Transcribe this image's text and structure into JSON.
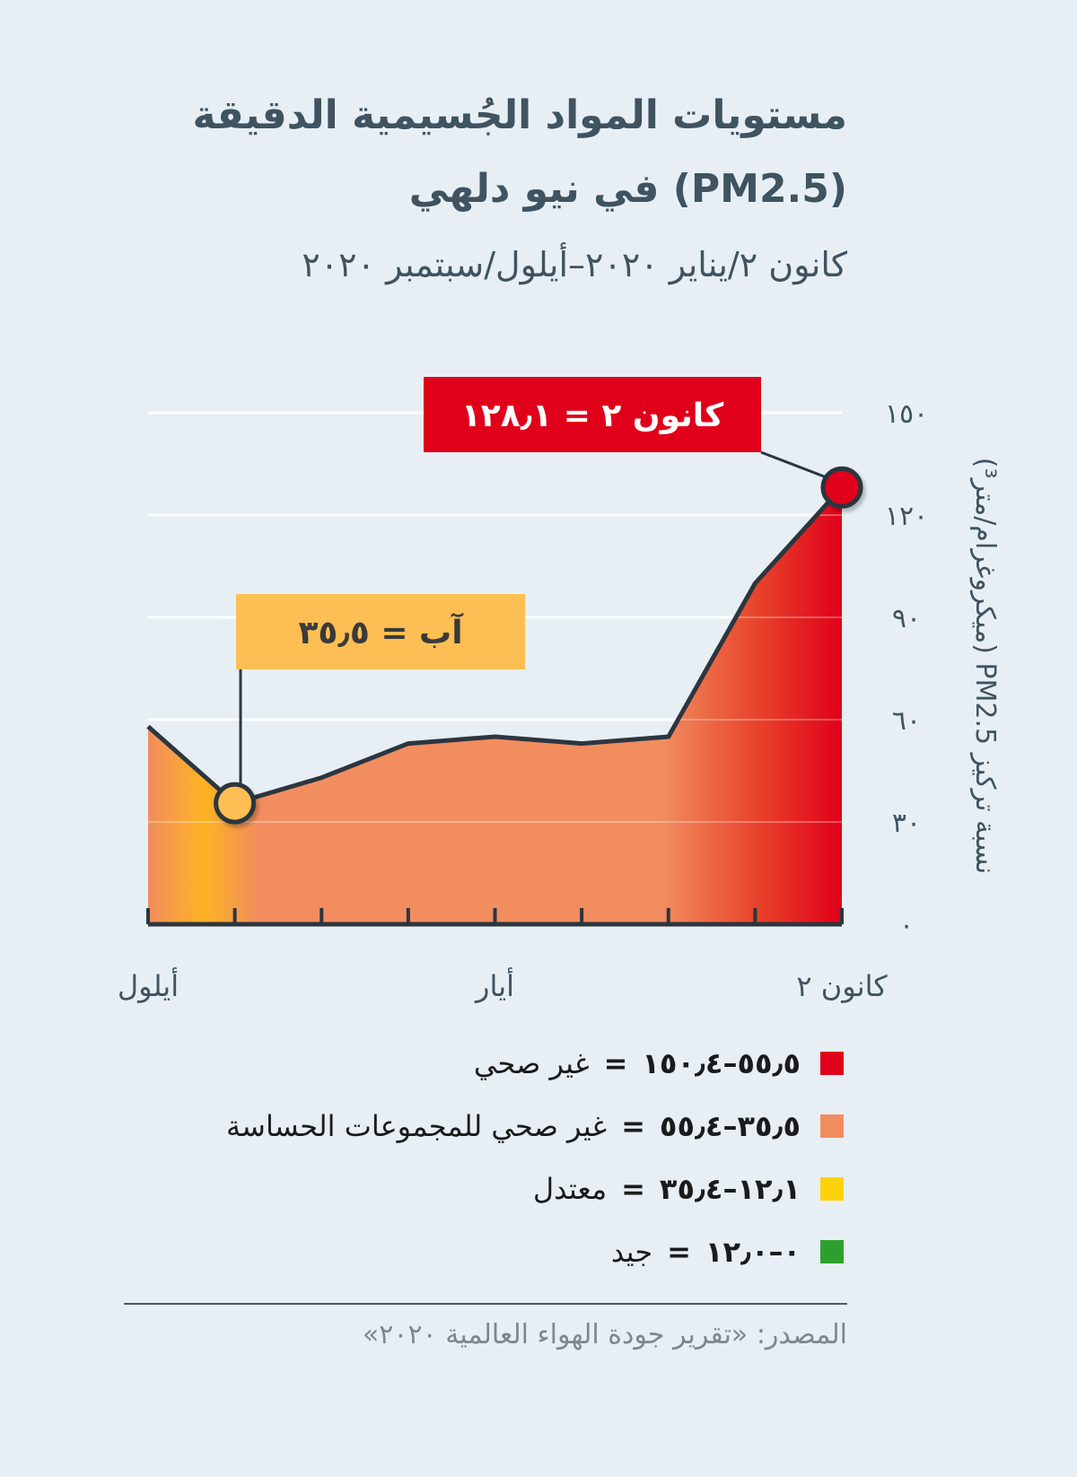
{
  "title": "مستويات المواد الجُسيمية الدقيقة (PM2.5) في نيو دلهي",
  "subtitle": "كانون ٢/يناير ٢٠٢٠–أيلول/سبتمبر ٢٠٢٠",
  "chart_data": {
    "type": "area",
    "ylabel": "نسبة تركيز PM2.5 (ميكروغرام/متر³)",
    "ylim": [
      0,
      150
    ],
    "y_ticks": [
      {
        "value": 0,
        "label": "٠"
      },
      {
        "value": 30,
        "label": "٣٠"
      },
      {
        "value": 60,
        "label": "٦٠"
      },
      {
        "value": 90,
        "label": "٩٠"
      },
      {
        "value": 120,
        "label": "١٢٠"
      },
      {
        "value": 150,
        "label": "١٥٠"
      }
    ],
    "x_tick_labels": [
      {
        "month_index": 1,
        "label": "كانون ٢"
      },
      {
        "month_index": 5,
        "label": "أيار"
      },
      {
        "month_index": 9,
        "label": "أيلول"
      }
    ],
    "x": [
      1,
      2,
      3,
      4,
      5,
      6,
      7,
      8,
      9
    ],
    "values": [
      128.1,
      100,
      55,
      53,
      55,
      53,
      43,
      35.5,
      58
    ],
    "grid": true,
    "annotations": [
      {
        "month_index": 1,
        "value": 128.1,
        "text": "كانون ٢ = ١٢٨٫١",
        "color": "#e0001a",
        "text_color": "#ffffff"
      },
      {
        "month_index": 8,
        "value": 35.5,
        "text": "آب = ٣٥٫٥",
        "color": "#fdbf53",
        "text_color": "#3a3a3a"
      }
    ]
  },
  "legend": [
    {
      "color": "#e0001a",
      "range": "٥٥٫٥–١٥٠٫٤",
      "eq": "=",
      "label": "غير صحي"
    },
    {
      "color": "#f28d5f",
      "range": "٣٥٫٥–٥٥٫٤",
      "eq": "=",
      "label": "غير صحي للمجموعات الحساسة"
    },
    {
      "color": "#fdd20a",
      "range": "١٢٫١–٣٥٫٤",
      "eq": "=",
      "label": "معتدل"
    },
    {
      "color": "#2ca02c",
      "range": "٠–١٢٫٠",
      "eq": "=",
      "label": "جيد"
    }
  ],
  "source": "المصدر: «تقرير جودة الهواء العالمية ٢٠٢٠»"
}
